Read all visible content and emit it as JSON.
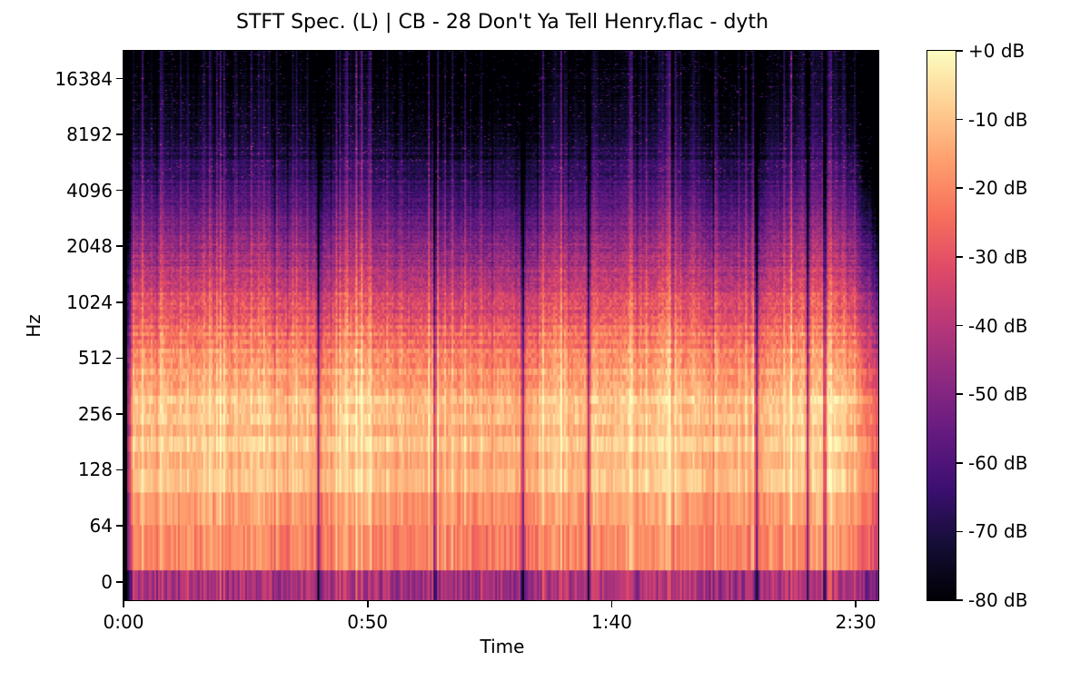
{
  "figure": {
    "background": "#ffffff"
  },
  "chart_data": {
    "type": "heatmap",
    "subtype": "stft-spectrogram",
    "title": "STFT Spec. (L) | CB - 28 Don't Ya Tell Henry.flac - dyth",
    "xlabel": "Time",
    "ylabel": "Hz",
    "x_ticks": [
      {
        "label": "0:00",
        "seconds": 0
      },
      {
        "label": "0:50",
        "seconds": 50
      },
      {
        "label": "1:40",
        "seconds": 100
      },
      {
        "label": "2:30",
        "seconds": 150
      }
    ],
    "y_ticks": [
      {
        "label": "16384",
        "hz": 16384
      },
      {
        "label": "8192",
        "hz": 8192
      },
      {
        "label": "4096",
        "hz": 4096
      },
      {
        "label": "2048",
        "hz": 2048
      },
      {
        "label": "1024",
        "hz": 1024
      },
      {
        "label": "512",
        "hz": 512
      },
      {
        "label": "256",
        "hz": 256
      },
      {
        "label": "128",
        "hz": 128
      },
      {
        "label": "64",
        "hz": 64
      },
      {
        "label": "0",
        "hz": 0
      }
    ],
    "duration_seconds": 155,
    "freq_top_hz": 22500,
    "db_range": {
      "min": -80,
      "max": 0
    },
    "colorbar_ticks": [
      "+0 dB",
      "-10 dB",
      "-20 dB",
      "-30 dB",
      "-40 dB",
      "-50 dB",
      "-60 dB",
      "-70 dB",
      "-80 dB"
    ],
    "colormap": {
      "name": "magma",
      "stops": [
        "#000004",
        "#140e36",
        "#3b0f70",
        "#641a80",
        "#8c2981",
        "#b73779",
        "#de4968",
        "#f7705c",
        "#fe9f6d",
        "#fecf92",
        "#fcfdbf"
      ]
    },
    "spectral_profile_db": [
      [
        16,
        -42
      ],
      [
        50,
        -20
      ],
      [
        90,
        -11
      ],
      [
        180,
        -8
      ],
      [
        300,
        -12
      ],
      [
        500,
        -18
      ],
      [
        800,
        -27
      ],
      [
        1300,
        -37
      ],
      [
        2200,
        -48
      ],
      [
        3500,
        -58
      ],
      [
        6000,
        -68
      ],
      [
        10000,
        -75
      ],
      [
        16000,
        -79
      ],
      [
        22500,
        -80
      ]
    ],
    "variance_profile_db": [
      [
        16,
        16
      ],
      [
        50,
        10
      ],
      [
        90,
        7
      ],
      [
        300,
        8
      ],
      [
        800,
        10
      ],
      [
        2200,
        11
      ],
      [
        4500,
        10
      ],
      [
        9000,
        7
      ],
      [
        22500,
        5
      ]
    ],
    "silence_gaps_seconds": [
      40,
      64,
      82,
      95.5,
      130,
      140.5,
      144
    ],
    "accents_seconds": [
      8,
      23,
      57,
      96.5,
      117,
      137
    ],
    "intro_silence_seconds": 0.6,
    "intro_fade_end_seconds": 2.0,
    "fade_out_start_seconds": 149.5,
    "fft_bin_hz": 31,
    "noise_seed": 1337
  }
}
